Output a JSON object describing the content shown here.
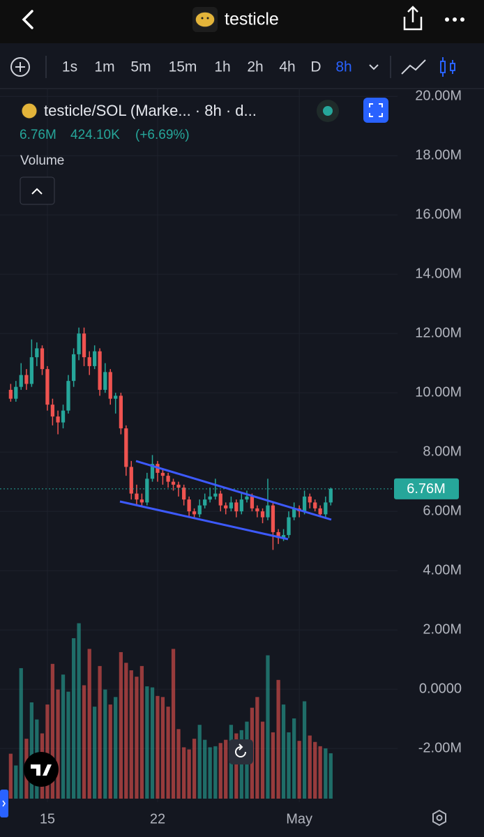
{
  "header": {
    "title": "testicle"
  },
  "timeframes": {
    "items": [
      "1s",
      "1m",
      "5m",
      "15m",
      "1h",
      "2h",
      "4h",
      "D",
      "8h"
    ],
    "active": 8
  },
  "legend": {
    "symbol": "testicle/SOL (Marke... · 8h · d...",
    "price": "6.76M",
    "volume": "424.10K",
    "change": "(+6.69%)",
    "indicator": "Volume"
  },
  "chart": {
    "type": "candlestick",
    "up_color": "#26a69a",
    "down_color": "#ef5350",
    "x": [
      12.67,
      13,
      13.33,
      13.67,
      14,
      14.33,
      14.67,
      15,
      15.33,
      15.67,
      16,
      16.33,
      16.67,
      17,
      17.33,
      17.67,
      18,
      18.33,
      18.67,
      19,
      19.33,
      19.67,
      20,
      20.33,
      20.67,
      21,
      21.33,
      21.67,
      22,
      22.33,
      22.67,
      23,
      23.33,
      23.67,
      24,
      24.33,
      24.67,
      25,
      25.33,
      25.67,
      26,
      26.33,
      26.67,
      27,
      27.33,
      27.67,
      28,
      28.33,
      28.67,
      29,
      29.33,
      29.67,
      30,
      30.33,
      30.67,
      31,
      31.33,
      31.67,
      32,
      32.33,
      32.67,
      33
    ],
    "ohlc": [
      [
        10.1,
        10.3,
        9.7,
        9.8
      ],
      [
        9.8,
        10.4,
        9.7,
        10.2
      ],
      [
        10.2,
        11.0,
        10.1,
        10.6
      ],
      [
        10.6,
        10.8,
        10.1,
        10.3
      ],
      [
        10.3,
        11.8,
        10.2,
        11.2
      ],
      [
        11.2,
        11.7,
        10.9,
        11.5
      ],
      [
        11.5,
        11.6,
        10.6,
        10.8
      ],
      [
        10.8,
        10.9,
        9.4,
        9.6
      ],
      [
        9.6,
        9.8,
        8.9,
        9.2
      ],
      [
        9.2,
        9.4,
        8.6,
        9.0
      ],
      [
        9.0,
        9.6,
        8.8,
        9.4
      ],
      [
        9.4,
        10.6,
        9.3,
        10.4
      ],
      [
        10.4,
        11.5,
        10.2,
        11.3
      ],
      [
        11.3,
        12.2,
        11.1,
        12.0
      ],
      [
        12.0,
        12.2,
        10.9,
        11.2
      ],
      [
        11.2,
        11.4,
        10.6,
        10.9
      ],
      [
        10.9,
        11.6,
        10.8,
        11.4
      ],
      [
        11.4,
        11.5,
        9.9,
        10.1
      ],
      [
        10.1,
        11.0,
        10.0,
        10.7
      ],
      [
        10.7,
        10.8,
        9.6,
        9.8
      ],
      [
        9.8,
        10.0,
        9.3,
        9.9
      ],
      [
        9.9,
        10.0,
        8.6,
        8.8
      ],
      [
        8.8,
        8.9,
        7.2,
        7.5
      ],
      [
        7.5,
        7.7,
        6.4,
        6.6
      ],
      [
        6.6,
        6.9,
        6.2,
        6.4
      ],
      [
        6.4,
        6.6,
        6.2,
        6.3
      ],
      [
        6.3,
        7.3,
        6.2,
        7.1
      ],
      [
        7.1,
        7.9,
        7.0,
        7.6
      ],
      [
        7.6,
        7.7,
        7.0,
        7.3
      ],
      [
        7.3,
        7.4,
        6.9,
        7.2
      ],
      [
        7.2,
        7.3,
        6.8,
        7.0
      ],
      [
        7.0,
        7.1,
        6.7,
        6.9
      ],
      [
        6.9,
        7.0,
        6.5,
        6.8
      ],
      [
        6.8,
        6.9,
        6.2,
        6.4
      ],
      [
        6.4,
        6.5,
        5.8,
        6.0
      ],
      [
        6.0,
        6.1,
        5.8,
        5.9
      ],
      [
        5.9,
        6.4,
        5.8,
        6.2
      ],
      [
        6.2,
        6.6,
        6.1,
        6.4
      ],
      [
        6.4,
        6.8,
        6.3,
        6.5
      ],
      [
        6.5,
        7.1,
        6.4,
        6.6
      ],
      [
        6.6,
        6.7,
        6.0,
        6.2
      ],
      [
        6.2,
        6.3,
        5.9,
        6.1
      ],
      [
        6.1,
        6.5,
        6.0,
        6.3
      ],
      [
        6.3,
        6.4,
        5.8,
        6.0
      ],
      [
        6.0,
        6.6,
        5.9,
        6.4
      ],
      [
        6.4,
        6.7,
        6.3,
        6.5
      ],
      [
        6.5,
        6.6,
        6.0,
        6.1
      ],
      [
        6.1,
        6.2,
        5.8,
        6.0
      ],
      [
        6.0,
        6.1,
        5.6,
        5.8
      ],
      [
        5.8,
        7.1,
        5.7,
        6.2
      ],
      [
        6.2,
        6.3,
        4.7,
        5.3
      ],
      [
        5.3,
        5.4,
        4.9,
        5.1
      ],
      [
        5.1,
        5.4,
        5.0,
        5.2
      ],
      [
        5.2,
        6.0,
        5.1,
        5.8
      ],
      [
        5.8,
        6.3,
        5.7,
        6.1
      ],
      [
        6.1,
        6.2,
        5.8,
        6.0
      ],
      [
        6.0,
        6.7,
        5.9,
        6.5
      ],
      [
        6.5,
        6.6,
        6.1,
        6.3
      ],
      [
        6.3,
        6.4,
        6.0,
        6.1
      ],
      [
        6.1,
        6.2,
        5.8,
        5.9
      ],
      [
        5.9,
        6.5,
        5.8,
        6.3
      ],
      [
        6.3,
        6.8,
        6.2,
        6.76
      ]
    ],
    "volume": [
      420,
      310,
      1220,
      560,
      900,
      740,
      610,
      880,
      1260,
      1020,
      1160,
      1000,
      1500,
      1640,
      1060,
      1400,
      860,
      1240,
      1020,
      880,
      950,
      1370,
      1270,
      1200,
      1140,
      1240,
      1050,
      1040,
      960,
      950,
      860,
      1400,
      650,
      480,
      460,
      560,
      690,
      550,
      480,
      490,
      520,
      550,
      690,
      610,
      640,
      720,
      850,
      950,
      720,
      1340,
      620,
      1110,
      880,
      620,
      750,
      540,
      910,
      590,
      530,
      490,
      470,
      424.1
    ],
    "volume_lim": [
      0,
      1800
    ],
    "xlim": [
      11.99,
      37.24
    ],
    "xticks": [
      15,
      22,
      {
        "value": 31,
        "label": "May"
      }
    ],
    "ylim": [
      -3.81,
      20.24
    ],
    "yticks": [
      {
        "value": 20,
        "label": "20.00M"
      },
      {
        "value": 18,
        "label": "18.00M"
      },
      {
        "value": 16,
        "label": "16.00M"
      },
      {
        "value": 14,
        "label": "14.00M"
      },
      {
        "value": 12,
        "label": "12.00M"
      },
      {
        "value": 10,
        "label": "10.00M"
      },
      {
        "value": 8,
        "label": "8.00M"
      },
      {
        "value": 6,
        "label": "6.00M"
      },
      {
        "value": 4,
        "label": "4.00M"
      },
      {
        "value": 2,
        "label": "2.00M"
      },
      {
        "value": 0,
        "label": "0.0000"
      },
      {
        "value": -2,
        "label": "-2.00M"
      }
    ],
    "last_price": {
      "value": 6.76,
      "label": "6.76M"
    },
    "grid": true
  }
}
